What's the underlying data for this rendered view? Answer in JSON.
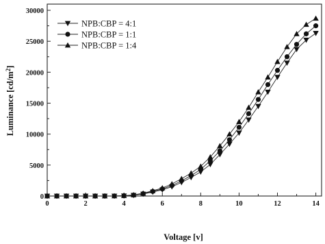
{
  "chart_data": {
    "type": "line",
    "title": "",
    "xlabel": "Voltage [v]",
    "ylabel_main": "Luminance [cd/m",
    "ylabel_sup": "2",
    "ylabel_end": "]",
    "xlim": [
      0,
      14.3
    ],
    "ylim": [
      0,
      31000
    ],
    "xticks": [
      0,
      2,
      4,
      6,
      8,
      10,
      12,
      14
    ],
    "yticks": [
      0,
      5000,
      10000,
      15000,
      20000,
      25000,
      30000
    ],
    "grid": false,
    "legend_position": "top-left",
    "x": [
      0,
      0.5,
      1,
      1.5,
      2,
      2.5,
      3,
      3.5,
      4,
      4.5,
      5,
      5.5,
      6,
      6.5,
      7,
      7.5,
      8,
      8.5,
      9,
      9.5,
      10,
      10.5,
      11,
      11.5,
      12,
      12.5,
      13,
      13.5,
      14
    ],
    "series": [
      {
        "name": "NPB:CBP = 4:1",
        "marker": "triangle-down",
        "values": [
          0,
          0,
          0,
          0,
          0,
          0,
          0,
          5,
          30,
          120,
          320,
          650,
          1000,
          1500,
          2200,
          3000,
          3900,
          5100,
          6700,
          8400,
          10200,
          12300,
          14500,
          16800,
          19200,
          21500,
          23700,
          25200,
          26300
        ]
      },
      {
        "name": "NPB:CBP = 1:1",
        "marker": "circle",
        "values": [
          0,
          0,
          0,
          0,
          0,
          0,
          0,
          8,
          40,
          150,
          380,
          740,
          1150,
          1700,
          2450,
          3300,
          4300,
          5700,
          7300,
          9100,
          11100,
          13300,
          15600,
          18000,
          20300,
          22500,
          24500,
          26200,
          27500
        ]
      },
      {
        "name": "NPB:CBP = 1:4",
        "marker": "triangle-up",
        "values": [
          0,
          0,
          0,
          0,
          0,
          0,
          0,
          10,
          50,
          180,
          450,
          850,
          1300,
          1950,
          2800,
          3700,
          4800,
          6300,
          8100,
          10000,
          12000,
          14300,
          16800,
          19200,
          21700,
          24100,
          26200,
          27700,
          28700
        ]
      }
    ]
  }
}
